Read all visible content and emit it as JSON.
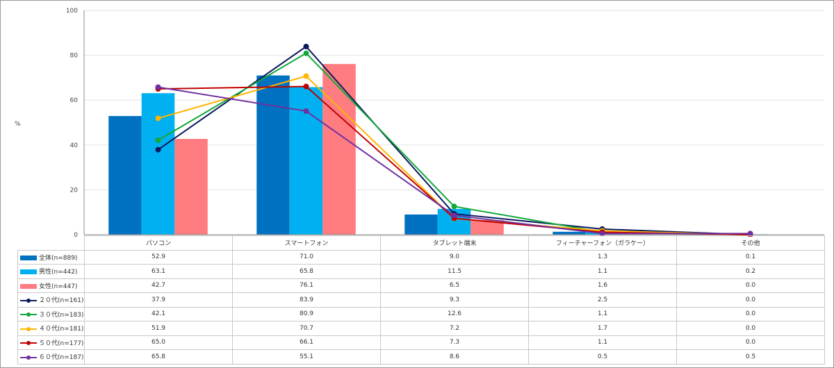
{
  "chart_data": {
    "type": "bar+line",
    "ylabel": "%",
    "ylim": [
      0,
      100
    ],
    "yticks": [
      0,
      20,
      40,
      60,
      80,
      100
    ],
    "grid": true,
    "categories": [
      "パソコン",
      "スマートフォン",
      "タブレット端末",
      "フィーチャーフォン（ガラケー）",
      "その他"
    ],
    "series": [
      {
        "name": "全体(n=889)",
        "kind": "bar",
        "color": "#0070c0",
        "values": [
          52.9,
          71.0,
          9.0,
          1.3,
          0.1
        ]
      },
      {
        "name": "男性(n=442)",
        "kind": "bar",
        "color": "#00b0f0",
        "values": [
          63.1,
          65.8,
          11.5,
          1.1,
          0.2
        ]
      },
      {
        "name": "女性(n=447)",
        "kind": "bar",
        "color": "#ff7c80",
        "values": [
          42.7,
          76.1,
          6.5,
          1.6,
          0.0
        ]
      },
      {
        "name": "２０代(n=161)",
        "kind": "line",
        "color": "#0a1a5c",
        "values": [
          37.9,
          83.9,
          9.3,
          2.5,
          0.0
        ]
      },
      {
        "name": "３０代(n=183)",
        "kind": "line",
        "color": "#12a83a",
        "values": [
          42.1,
          80.9,
          12.6,
          1.1,
          0.0
        ]
      },
      {
        "name": "４０代(n=181)",
        "kind": "line",
        "color": "#ffb400",
        "values": [
          51.9,
          70.7,
          7.2,
          1.7,
          0.0
        ]
      },
      {
        "name": "５０代(n=177)",
        "kind": "line",
        "color": "#c00000",
        "values": [
          65.0,
          66.1,
          7.3,
          1.1,
          0.0
        ]
      },
      {
        "name": "６０代(n=187)",
        "kind": "line",
        "color": "#7030a0",
        "values": [
          65.8,
          55.1,
          8.6,
          0.5,
          0.5
        ]
      }
    ]
  }
}
